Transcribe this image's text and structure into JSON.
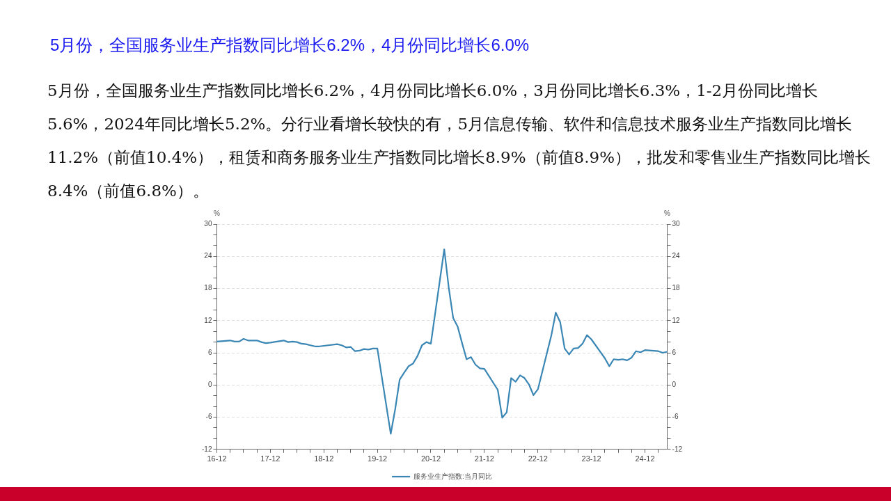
{
  "chart_data": {
    "type": "line",
    "title": "5月份，全国服务业生产指数同比增长6.2%，4月份同比增长6.0%",
    "subtitle": "5月份，全国服务业生产指数同比增长6.2%，4月份同比增长6.0%，3月份同比增长6.3%，1-2月份同比增长5.6%，2024年同比增长5.2%。分行业看增长较快的有，5月信息传输、软件和信息技术服务业生产指数同比增长11.2%（前值10.4%），租赁和商务服务业生产指数同比增长8.9%（前值8.9%），批发和零售业生产指数同比增长8.4%（前值6.8%）。",
    "ylabel": "%",
    "y2label": "%",
    "series": [
      {
        "name": "服务业生产指数:当月同比",
        "color": "#3a86b4",
        "x": [
          "2016-12",
          "2017-03",
          "2017-04",
          "2017-05",
          "2017-06",
          "2017-07",
          "2017-08",
          "2017-09",
          "2017-10",
          "2017-11",
          "2017-12",
          "2018-03",
          "2018-04",
          "2018-05",
          "2018-06",
          "2018-07",
          "2018-08",
          "2018-09",
          "2018-10",
          "2018-11",
          "2018-12",
          "2019-03",
          "2019-04",
          "2019-05",
          "2019-06",
          "2019-07",
          "2019-08",
          "2019-09",
          "2019-10",
          "2019-11",
          "2019-12",
          "2020-03",
          "2020-04",
          "2020-05",
          "2020-06",
          "2020-07",
          "2020-08",
          "2020-09",
          "2020-10",
          "2020-11",
          "2020-12",
          "2021-03",
          "2021-04",
          "2021-05",
          "2021-06",
          "2021-07",
          "2021-08",
          "2021-09",
          "2021-10",
          "2021-11",
          "2021-12",
          "2022-03",
          "2022-04",
          "2022-05",
          "2022-06",
          "2022-07",
          "2022-08",
          "2022-09",
          "2022-10",
          "2022-11",
          "2022-12",
          "2023-03",
          "2023-04",
          "2023-05",
          "2023-06",
          "2023-07",
          "2023-08",
          "2023-09",
          "2023-10",
          "2023-11",
          "2023-12",
          "2024-03",
          "2024-04",
          "2024-05",
          "2024-06",
          "2024-07",
          "2024-08",
          "2024-09",
          "2024-10",
          "2024-11",
          "2024-12",
          "2025-03",
          "2025-04",
          "2025-05"
        ],
        "values": [
          8.1,
          8.3,
          8.1,
          8.1,
          8.6,
          8.3,
          8.3,
          8.3,
          8.0,
          7.8,
          7.9,
          8.3,
          8.0,
          8.1,
          8.0,
          7.7,
          7.6,
          7.4,
          7.2,
          7.2,
          7.3,
          7.6,
          7.4,
          7.0,
          7.1,
          6.3,
          6.4,
          6.7,
          6.6,
          6.8,
          6.8,
          -9.1,
          -4.5,
          1.0,
          2.3,
          3.5,
          4.0,
          5.4,
          7.4,
          8.0,
          7.7,
          25.3,
          18.2,
          12.5,
          10.9,
          7.8,
          4.8,
          5.2,
          3.8,
          3.1,
          3.0,
          -0.9,
          -6.1,
          -5.1,
          1.3,
          0.6,
          1.8,
          1.3,
          0.1,
          -1.9,
          -0.8,
          9.2,
          13.5,
          11.7,
          6.8,
          5.7,
          6.8,
          6.9,
          7.7,
          9.3,
          8.5,
          5.0,
          3.5,
          4.8,
          4.7,
          4.8,
          4.6,
          5.1,
          6.3,
          6.1,
          6.5,
          6.3,
          6.0,
          6.2
        ]
      }
    ],
    "xlim": [
      "2016-12",
      "2025-05"
    ],
    "xticks": [
      {
        "value": "2016-12",
        "label": "16-12"
      },
      {
        "value": "2017-03",
        "label": null
      },
      {
        "value": "2017-06",
        "label": null
      },
      {
        "value": "2017-09",
        "label": null
      },
      {
        "value": "2017-12",
        "label": "17-12"
      },
      {
        "value": "2018-03",
        "label": null
      },
      {
        "value": "2018-06",
        "label": null
      },
      {
        "value": "2018-09",
        "label": null
      },
      {
        "value": "2018-12",
        "label": "18-12"
      },
      {
        "value": "2019-03",
        "label": null
      },
      {
        "value": "2019-06",
        "label": null
      },
      {
        "value": "2019-09",
        "label": null
      },
      {
        "value": "2019-12",
        "label": "19-12"
      },
      {
        "value": "2020-03",
        "label": null
      },
      {
        "value": "2020-06",
        "label": null
      },
      {
        "value": "2020-09",
        "label": null
      },
      {
        "value": "2020-12",
        "label": "20-12"
      },
      {
        "value": "2021-03",
        "label": null
      },
      {
        "value": "2021-06",
        "label": null
      },
      {
        "value": "2021-09",
        "label": null
      },
      {
        "value": "2021-12",
        "label": "21-12"
      },
      {
        "value": "2022-03",
        "label": null
      },
      {
        "value": "2022-06",
        "label": null
      },
      {
        "value": "2022-09",
        "label": null
      },
      {
        "value": "2022-12",
        "label": "22-12"
      },
      {
        "value": "2023-03",
        "label": null
      },
      {
        "value": "2023-06",
        "label": null
      },
      {
        "value": "2023-09",
        "label": null
      },
      {
        "value": "2023-12",
        "label": "23-12"
      },
      {
        "value": "2024-03",
        "label": null
      },
      {
        "value": "2024-06",
        "label": null
      },
      {
        "value": "2024-09",
        "label": null
      },
      {
        "value": "2024-12",
        "label": "24-12"
      },
      {
        "value": "2025-03",
        "label": null
      }
    ],
    "ylim": [
      -12,
      30
    ],
    "yticks": [
      -12,
      {
        "value": -10,
        "label": null
      },
      {
        "value": -8,
        "label": null
      },
      -6,
      {
        "value": -4,
        "label": null
      },
      {
        "value": -2,
        "label": null
      },
      0,
      {
        "value": 2,
        "label": null
      },
      {
        "value": 4,
        "label": null
      },
      6,
      {
        "value": 8,
        "label": null
      },
      {
        "value": 10,
        "label": null
      },
      12,
      {
        "value": 14,
        "label": null
      },
      {
        "value": 16,
        "label": null
      },
      18,
      {
        "value": 20,
        "label": null
      },
      {
        "value": 22,
        "label": null
      },
      24,
      {
        "value": 26,
        "label": null
      },
      {
        "value": 28,
        "label": null
      },
      30
    ],
    "y2lim": [
      -12,
      30
    ],
    "y2ticks": [
      -12,
      {
        "value": -10,
        "label": null
      },
      {
        "value": -8,
        "label": null
      },
      -6,
      {
        "value": -4,
        "label": null
      },
      {
        "value": -2,
        "label": null
      },
      0,
      {
        "value": 2,
        "label": null
      },
      {
        "value": 4,
        "label": null
      },
      6,
      {
        "value": 8,
        "label": null
      },
      {
        "value": 10,
        "label": null
      },
      12,
      {
        "value": 14,
        "label": null
      },
      {
        "value": 16,
        "label": null
      },
      18,
      {
        "value": 20,
        "label": null
      },
      {
        "value": 22,
        "label": null
      },
      24,
      {
        "value": 26,
        "label": null
      },
      {
        "value": 28,
        "label": null
      },
      30
    ],
    "grid": "y",
    "legend": "bottom",
    "marker": "none",
    "line_style": "solid"
  }
}
